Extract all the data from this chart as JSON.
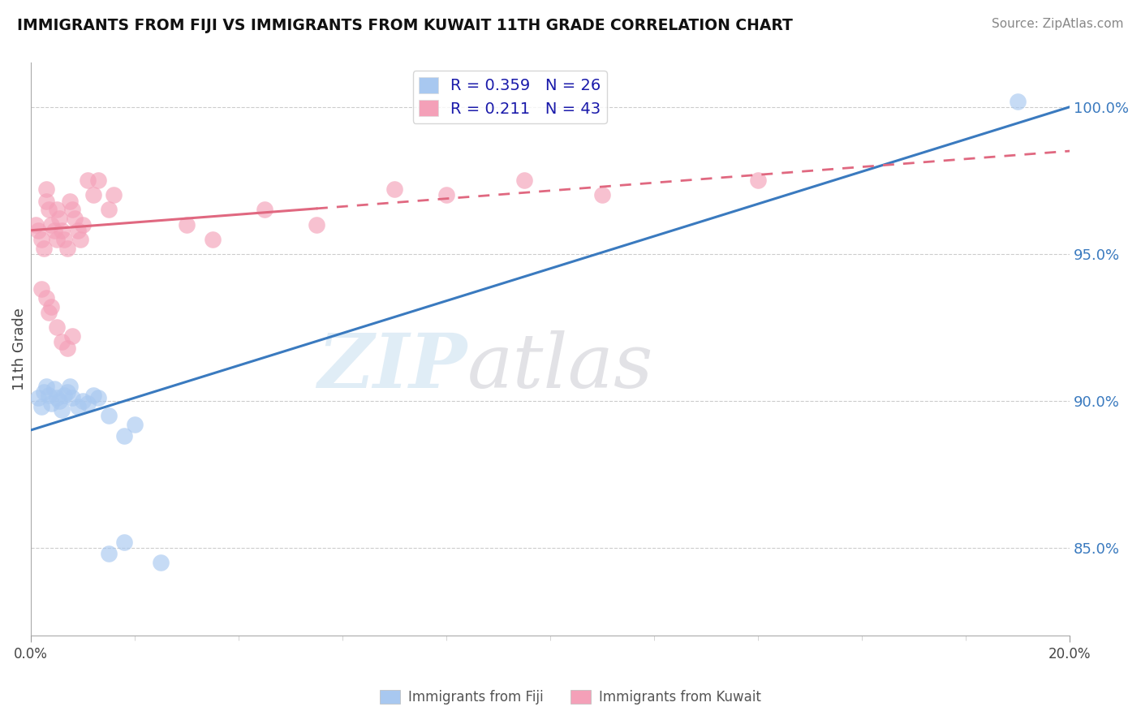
{
  "title": "IMMIGRANTS FROM FIJI VS IMMIGRANTS FROM KUWAIT 11TH GRADE CORRELATION CHART",
  "source": "Source: ZipAtlas.com",
  "ylabel": "11th Grade",
  "fiji_R": 0.359,
  "fiji_N": 26,
  "kuwait_R": 0.211,
  "kuwait_N": 43,
  "fiji_color": "#a8c8f0",
  "kuwait_color": "#f4a0b8",
  "fiji_line_color": "#3a7abf",
  "kuwait_line_color": "#e06880",
  "x_range": [
    0.0,
    20.0
  ],
  "y_range": [
    82.0,
    101.5
  ],
  "y_ticks": [
    85.0,
    90.0,
    95.0,
    100.0
  ],
  "y_tick_labels": [
    "85.0%",
    "90.0%",
    "95.0%",
    "100.0%"
  ],
  "fiji_line_x0": 0.0,
  "fiji_line_y0": 89.0,
  "fiji_line_x1": 20.0,
  "fiji_line_y1": 100.0,
  "kuwait_line_x0": 0.0,
  "kuwait_line_y0": 95.8,
  "kuwait_line_x1": 20.0,
  "kuwait_line_y1": 98.5,
  "kuwait_solid_end": 5.5,
  "fiji_scatter_x": [
    0.15,
    0.2,
    0.25,
    0.3,
    0.35,
    0.4,
    0.45,
    0.5,
    0.55,
    0.6,
    0.65,
    0.7,
    0.75,
    0.8,
    0.9,
    1.0,
    1.1,
    1.2,
    1.3,
    1.5,
    1.8,
    2.0,
    1.5,
    1.8,
    2.5,
    19.0
  ],
  "fiji_scatter_y": [
    90.1,
    89.8,
    90.3,
    90.5,
    90.2,
    89.9,
    90.4,
    90.1,
    90.0,
    89.7,
    90.2,
    90.3,
    90.5,
    90.1,
    89.8,
    90.0,
    89.9,
    90.2,
    90.1,
    89.5,
    88.8,
    89.2,
    84.8,
    85.2,
    84.5,
    100.2
  ],
  "kuwait_scatter_x": [
    0.1,
    0.15,
    0.2,
    0.25,
    0.3,
    0.3,
    0.35,
    0.4,
    0.45,
    0.5,
    0.5,
    0.55,
    0.6,
    0.65,
    0.7,
    0.75,
    0.8,
    0.85,
    0.9,
    0.95,
    1.0,
    1.1,
    1.2,
    1.3,
    1.5,
    1.6,
    0.2,
    0.3,
    0.35,
    0.4,
    0.5,
    0.6,
    0.7,
    0.8,
    3.0,
    3.5,
    4.5,
    5.5,
    7.0,
    8.0,
    9.5,
    11.0,
    14.0
  ],
  "kuwait_scatter_y": [
    96.0,
    95.8,
    95.5,
    95.2,
    97.2,
    96.8,
    96.5,
    96.0,
    95.8,
    96.5,
    95.5,
    96.2,
    95.8,
    95.5,
    95.2,
    96.8,
    96.5,
    96.2,
    95.8,
    95.5,
    96.0,
    97.5,
    97.0,
    97.5,
    96.5,
    97.0,
    93.8,
    93.5,
    93.0,
    93.2,
    92.5,
    92.0,
    91.8,
    92.2,
    96.0,
    95.5,
    96.5,
    96.0,
    97.2,
    97.0,
    97.5,
    97.0,
    97.5
  ]
}
